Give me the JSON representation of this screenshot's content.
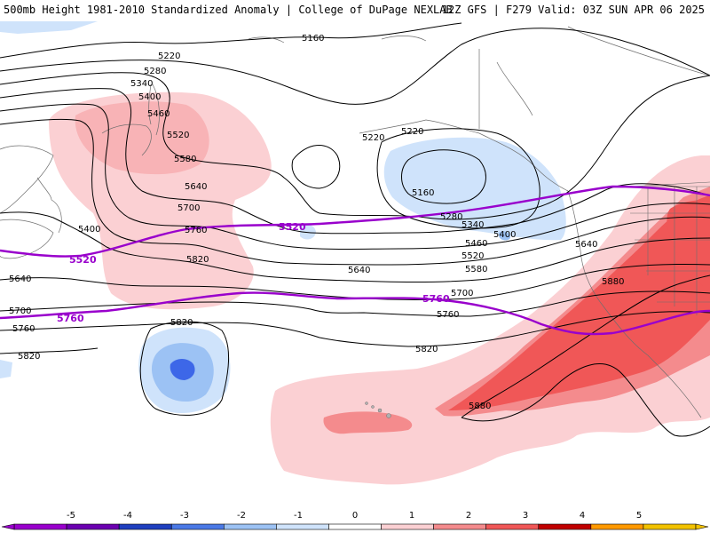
{
  "header": {
    "left_title": "500mb Height 1981-2010 Standardized Anomaly | College of DuPage NEXLAB",
    "right_title": "12Z GFS | F279 Valid: 03Z SUN APR 06 2025"
  },
  "colors": {
    "neg1": "#cfe3fb",
    "neg2": "#9cc2f4",
    "neg3": "#3d67e8",
    "pos1": "#fbd0d3",
    "pos2": "#f48b8d",
    "pos3": "#f05757",
    "contour": "#000000",
    "thick": "#9900cc"
  },
  "contour_labels": [
    {
      "id": "5160a",
      "text": "5160"
    },
    {
      "id": "5220a",
      "text": "5220"
    },
    {
      "id": "5280a",
      "text": "5280"
    },
    {
      "id": "5340a",
      "text": "5340"
    },
    {
      "id": "5400a",
      "text": "5400"
    },
    {
      "id": "5460a",
      "text": "5460"
    },
    {
      "id": "5520a",
      "text": "5520"
    },
    {
      "id": "5580a",
      "text": "5580"
    },
    {
      "id": "5640a",
      "text": "5640"
    },
    {
      "id": "5700a",
      "text": "5700"
    },
    {
      "id": "5760a",
      "text": "5760"
    },
    {
      "id": "5820a",
      "text": "5820"
    },
    {
      "id": "5400b",
      "text": "5400"
    },
    {
      "id": "5640b",
      "text": "5640"
    },
    {
      "id": "5700b",
      "text": "5700"
    },
    {
      "id": "5760b",
      "text": "5760"
    },
    {
      "id": "5820b",
      "text": "5820"
    },
    {
      "id": "5820c",
      "text": "5820"
    },
    {
      "id": "5220b",
      "text": "5220"
    },
    {
      "id": "5220c",
      "text": "5220"
    },
    {
      "id": "5160b",
      "text": "5160"
    },
    {
      "id": "5280b",
      "text": "5280"
    },
    {
      "id": "5340b",
      "text": "5340"
    },
    {
      "id": "5400c",
      "text": "5400"
    },
    {
      "id": "5460b",
      "text": "5460"
    },
    {
      "id": "5520c",
      "text": "5520"
    },
    {
      "id": "5580b",
      "text": "5580"
    },
    {
      "id": "5640c",
      "text": "5640"
    },
    {
      "id": "5700c",
      "text": "5700"
    },
    {
      "id": "5760c",
      "text": "5760"
    },
    {
      "id": "5820d",
      "text": "5820"
    },
    {
      "id": "5640d",
      "text": "5640"
    },
    {
      "id": "5880a",
      "text": "5880"
    },
    {
      "id": "5880b",
      "text": "5880"
    }
  ],
  "thickness_labels": [
    {
      "id": "t5520a",
      "text": "5520"
    },
    {
      "id": "t5520b",
      "text": "5520"
    },
    {
      "id": "t5760a",
      "text": "5760"
    },
    {
      "id": "t5760b",
      "text": "5760"
    }
  ],
  "colorbar": {
    "ticks": [
      "-5",
      "-4",
      "-3",
      "-2",
      "-1",
      "0",
      "1",
      "2",
      "3",
      "4",
      "5"
    ],
    "segments": [
      "#9900cc",
      "#6b00b0",
      "#1f3fbf",
      "#4a79e6",
      "#9cc2f4",
      "#cfe3fb",
      "#ffffff",
      "#fbd0d3",
      "#f48b8d",
      "#f05757",
      "#c00000",
      "#ff9900",
      "#f2c200"
    ]
  }
}
